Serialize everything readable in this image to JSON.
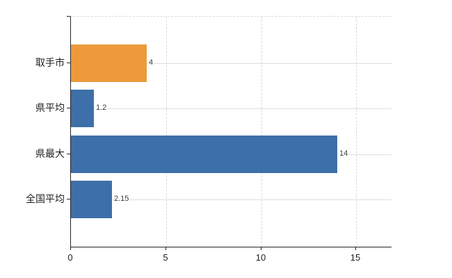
{
  "chart_data": {
    "type": "bar",
    "orientation": "horizontal",
    "title": "",
    "xlabel": "",
    "ylabel": "",
    "categories": [
      "取手市",
      "県平均",
      "県最大",
      "全国平均"
    ],
    "values": [
      4,
      1.2,
      14,
      2.15
    ],
    "value_labels": [
      "4",
      "1.2",
      "14",
      "2.15"
    ],
    "bar_colors": [
      "#ec9a3c",
      "#3d6fa8",
      "#3d6fa8",
      "#3d6fa8"
    ],
    "xlim": [
      0,
      16.85
    ],
    "x_ticks": [
      0,
      5,
      10,
      15
    ],
    "x_tick_labels": [
      "0",
      "5",
      "10",
      "15"
    ],
    "grid": {
      "vertical": "dashed light-gray at x ticks (5,10,15) and dashed top border",
      "horizontal": "solid light-gray through each category center"
    },
    "legend": "none",
    "background": "#ffffff"
  },
  "colors": {
    "axis": "#262626",
    "gridline_horizontal": "#dadeda",
    "gridline_vertical": "#d9d9d9",
    "value_label_text": "#3a3a3a",
    "tick_label_text": "#1f1f1f",
    "highlight_bar": "#ec9a3c",
    "default_bar": "#3d6fa8"
  }
}
